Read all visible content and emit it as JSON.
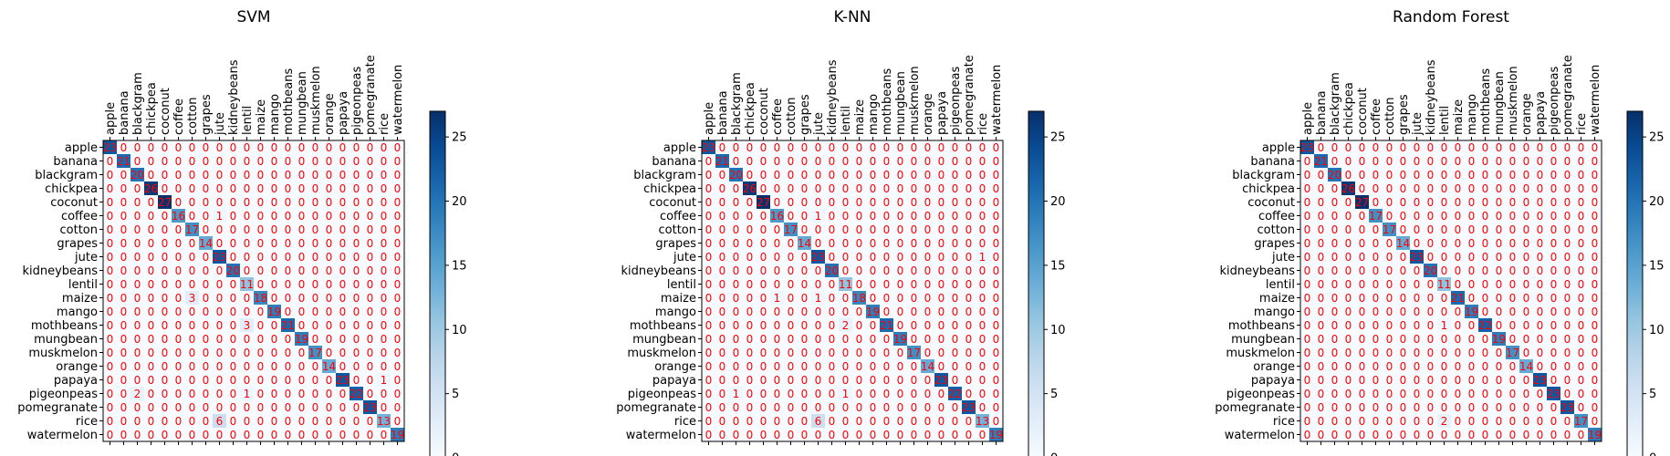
{
  "chart_data": [
    {
      "type": "heatmap",
      "title": "SVM",
      "labels": [
        "apple",
        "banana",
        "blackgram",
        "chickpea",
        "coconut",
        "coffee",
        "cotton",
        "grapes",
        "jute",
        "kidneybeans",
        "lentil",
        "maize",
        "mango",
        "mothbeans",
        "mungbean",
        "muskmelon",
        "orange",
        "papaya",
        "pigeonpeas",
        "pomegranate",
        "rice",
        "watermelon"
      ],
      "off_diagonal": [
        [
          5,
          8,
          1
        ],
        [
          11,
          6,
          3
        ],
        [
          13,
          10,
          3
        ],
        [
          18,
          2,
          2
        ],
        [
          18,
          10,
          1
        ],
        [
          17,
          20,
          1
        ],
        [
          20,
          8,
          6
        ]
      ],
      "diagonal_labels": [
        "23",
        "21",
        "20",
        "26",
        "27",
        "16",
        "17",
        "14",
        "23",
        "20",
        "11",
        "18",
        "19",
        "21",
        "19",
        "17",
        "14",
        "23",
        "22",
        "23",
        "13",
        "19"
      ],
      "colorbar": {
        "min": 0,
        "max": 27,
        "ticks": [
          0,
          5,
          10,
          15,
          20,
          25
        ]
      },
      "cmap": "Blues",
      "cell_text_color": "#ff0000"
    },
    {
      "type": "heatmap",
      "title": "K-NN",
      "labels": [
        "apple",
        "banana",
        "blackgram",
        "chickpea",
        "coconut",
        "coffee",
        "cotton",
        "grapes",
        "jute",
        "kidneybeans",
        "lentil",
        "maize",
        "mango",
        "mothbeans",
        "mungbean",
        "muskmelon",
        "orange",
        "papaya",
        "pigeonpeas",
        "pomegranate",
        "rice",
        "watermelon"
      ],
      "off_diagonal": [
        [
          5,
          8,
          1
        ],
        [
          8,
          20,
          1
        ],
        [
          11,
          5,
          1
        ],
        [
          11,
          8,
          1
        ],
        [
          13,
          10,
          2
        ],
        [
          18,
          2,
          1
        ],
        [
          18,
          10,
          1
        ],
        [
          20,
          8,
          6
        ]
      ],
      "diagonal_labels": [
        "23",
        "21",
        "20",
        "26",
        "27",
        "16",
        "17",
        "14",
        "23",
        "20",
        "11",
        "18",
        "19",
        "21",
        "19",
        "17",
        "14",
        "23",
        "22",
        "23",
        "13",
        "19"
      ],
      "colorbar": {
        "min": 0,
        "max": 27,
        "ticks": [
          0,
          5,
          10,
          15,
          20,
          25
        ]
      },
      "cmap": "Blues",
      "cell_text_color": "#ff0000"
    },
    {
      "type": "heatmap",
      "title": "Random Forest",
      "labels": [
        "apple",
        "banana",
        "blackgram",
        "chickpea",
        "coconut",
        "coffee",
        "cotton",
        "grapes",
        "jute",
        "kidneybeans",
        "lentil",
        "maize",
        "mango",
        "mothbeans",
        "mungbean",
        "muskmelon",
        "orange",
        "papaya",
        "pigeonpeas",
        "pomegranate",
        "rice",
        "watermelon"
      ],
      "off_diagonal": [
        [
          13,
          10,
          1
        ],
        [
          20,
          10,
          2
        ]
      ],
      "diagonal_labels": [
        "23",
        "21",
        "20",
        "26",
        "27",
        "17",
        "17",
        "14",
        "23",
        "20",
        "11",
        "21",
        "19",
        "22",
        "19",
        "17",
        "14",
        "23",
        "23",
        "23",
        "17",
        "19"
      ],
      "colorbar": {
        "min": 0,
        "max": 27,
        "ticks": [
          0,
          5,
          10,
          15,
          20,
          25
        ]
      },
      "cmap": "Blues",
      "cell_text_color": "#ff0000"
    }
  ]
}
